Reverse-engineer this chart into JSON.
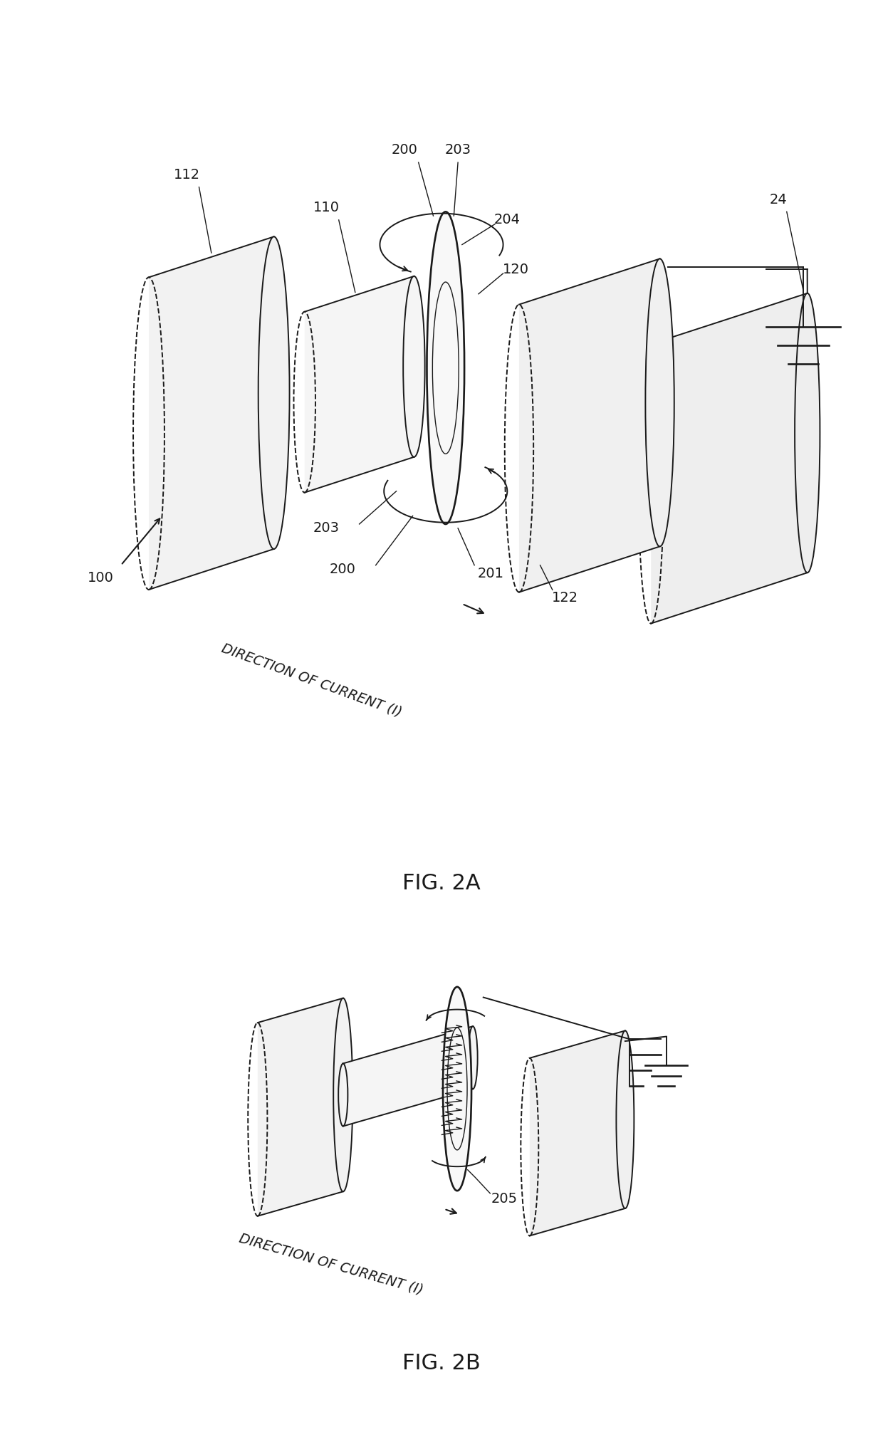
{
  "fig_width": 12.4,
  "fig_height": 20.25,
  "dpi": 100,
  "bg_color": "#ffffff",
  "line_color": "#1a1a1a",
  "fig2a_caption": "FIG. 2A",
  "fig2b_caption": "FIG. 2B"
}
